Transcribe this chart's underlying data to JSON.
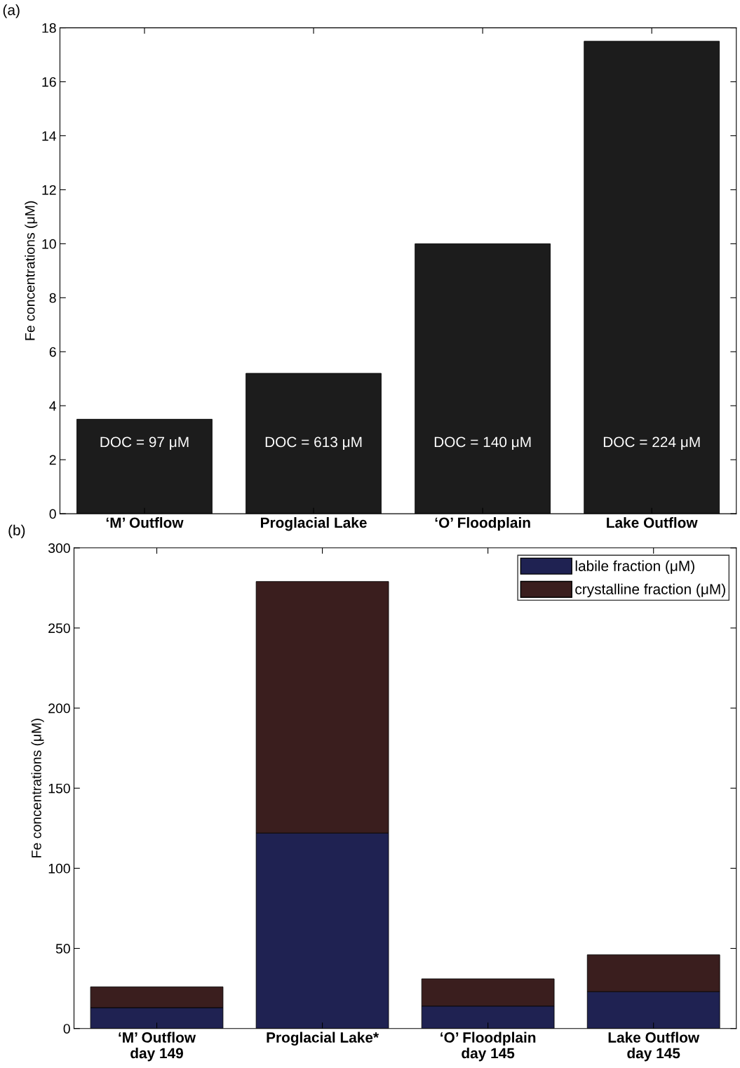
{
  "chart_data": [
    {
      "type": "bar",
      "ylabel": "Fe concentrations (μM)",
      "categories": [
        "‘M’ Outflow",
        "Proglacial Lake",
        "‘O’ Floodplain",
        "Lake Outflow"
      ],
      "values": [
        3.5,
        5.2,
        10.0,
        17.5
      ],
      "color": "#1c1c1c",
      "ylim": [
        0,
        18
      ],
      "yticks": [
        0,
        2,
        4,
        6,
        8,
        10,
        12,
        14,
        16,
        18
      ],
      "grid": false,
      "annotations": [
        "(a)",
        "DOC = 97 μM",
        "DOC = 613 μM",
        "DOC = 140 μM",
        "DOC = 224 μM"
      ]
    },
    {
      "type": "bar",
      "stacked": true,
      "ylabel": "Fe concentrations (μM)",
      "categories": [
        "‘M’ Outflow\nday 149",
        "Proglacial Lake*",
        "‘O’ Floodplain\nday 145",
        "Lake Outflow\nday 145"
      ],
      "series": [
        {
          "name": "labile fraction (μM)",
          "color": "#1f2252",
          "values": [
            13,
            122,
            14,
            23
          ]
        },
        {
          "name": "crystalline fraction (μM)",
          "color": "#3a1e1e",
          "values": [
            13,
            157,
            17,
            23
          ]
        }
      ],
      "ylim": [
        0,
        300
      ],
      "yticks": [
        0,
        50,
        100,
        150,
        200,
        250,
        300
      ],
      "grid": false,
      "legend": "top right",
      "annotations": [
        "(b)"
      ]
    }
  ]
}
